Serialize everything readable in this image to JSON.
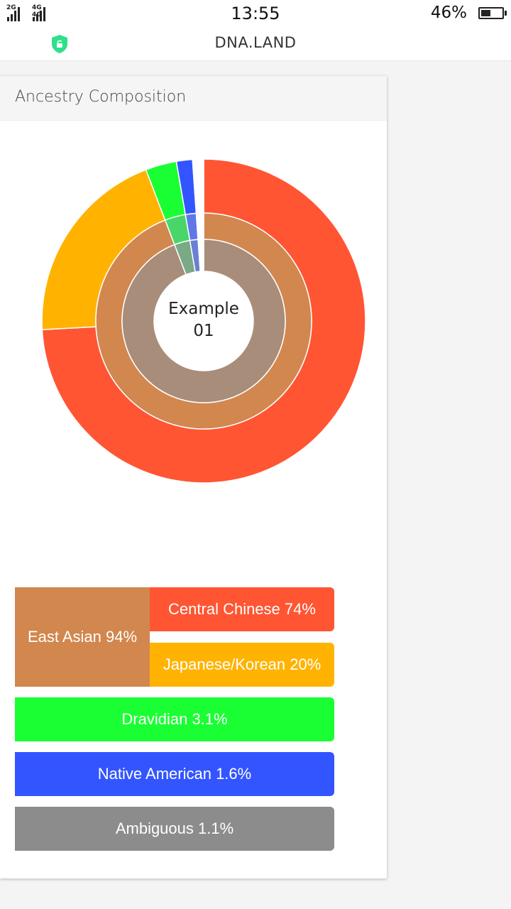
{
  "status_bar": {
    "network_1": "2G",
    "network_2": "4G 4G",
    "time": "13:55",
    "battery_percent": "46%",
    "battery_level": 0.46
  },
  "header": {
    "site_title": "DNA.LAND",
    "icon": "shield-lock-icon"
  },
  "card": {
    "title": "Ancestry Composition",
    "center_label_line1": "Example",
    "center_label_line2": "01"
  },
  "chart_data": {
    "type": "pie",
    "rings": [
      {
        "level": "outer",
        "slices": [
          {
            "name": "Central Chinese",
            "value": 74,
            "color": "#ff5533"
          },
          {
            "name": "Japanese/Korean",
            "value": 20,
            "color": "#ffb300"
          },
          {
            "name": "Dravidian",
            "value": 3.1,
            "color": "#1aff33"
          },
          {
            "name": "Native American",
            "value": 1.6,
            "color": "#3355ff"
          },
          {
            "name": "Ambiguous",
            "value": 1.1,
            "color": "#ffffff"
          }
        ]
      },
      {
        "level": "middle",
        "slices": [
          {
            "name": "East Asian",
            "value": 94,
            "color": "#d2874e"
          },
          {
            "name": "Dravidian",
            "value": 3.1,
            "color": "#49d669"
          },
          {
            "name": "Native American",
            "value": 1.6,
            "color": "#5f78e6"
          },
          {
            "name": "Ambiguous",
            "value": 1.1,
            "color": "#ffffff"
          }
        ]
      },
      {
        "level": "inner",
        "slices": [
          {
            "name": "East Asian",
            "value": 94,
            "color": "#a88d7a"
          },
          {
            "name": "Dravidian",
            "value": 3.1,
            "color": "#7aa986"
          },
          {
            "name": "Native American",
            "value": 1.6,
            "color": "#6a7fd6"
          },
          {
            "name": "Ambiguous",
            "value": 1.1,
            "color": "#ffffff"
          }
        ]
      }
    ]
  },
  "legend": {
    "east_asian": {
      "label": "East Asian 94%",
      "color": "#d2874e"
    },
    "central_chinese": {
      "label": "Central Chinese 74%",
      "color": "#ff5533"
    },
    "japanese_korean": {
      "label": "Japanese/Korean 20%",
      "color": "#ffb300"
    },
    "dravidian": {
      "label": "Dravidian 3.1%",
      "color": "#1aff33"
    },
    "native_american": {
      "label": "Native American 1.6%",
      "color": "#3355ff"
    },
    "ambiguous": {
      "label": "Ambiguous 1.1%",
      "color": "#8c8c8c"
    }
  }
}
